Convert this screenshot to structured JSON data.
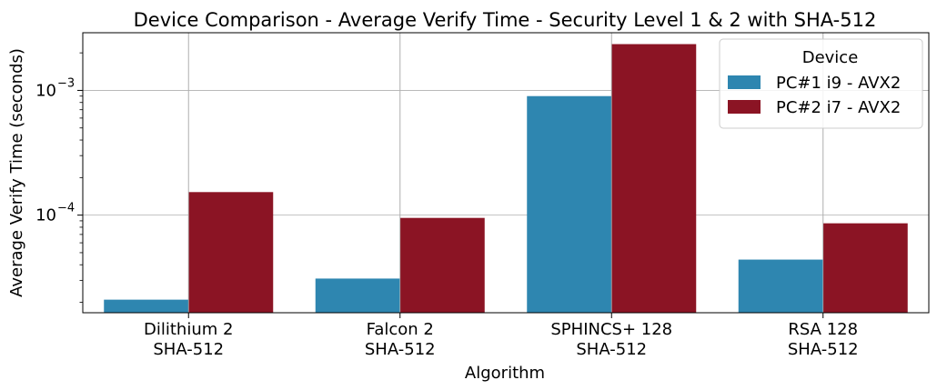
{
  "chart_data": {
    "type": "bar",
    "title": "Device Comparison - Average Verify Time - Security Level 1 & 2 with SHA-512",
    "xlabel": "Algorithm",
    "ylabel": "Average Verify Time (seconds)",
    "yscale": "log",
    "ylim": [
      1.65e-05,
      0.0029
    ],
    "grid": true,
    "categories": [
      [
        "Dilithium 2",
        "SHA-512"
      ],
      [
        "Falcon 2",
        "SHA-512"
      ],
      [
        "SPHINCS+ 128",
        "SHA-512"
      ],
      [
        "RSA 128",
        "SHA-512"
      ]
    ],
    "y_ticks": [
      {
        "value": 0.001,
        "base": "10",
        "exp": "−3"
      },
      {
        "value": 0.0001,
        "base": "10",
        "exp": "−4"
      }
    ],
    "legend": {
      "title": "Device",
      "position": "top-right"
    },
    "series": [
      {
        "name": "PC#1 i9 - AVX2",
        "color": "#2e86b0",
        "values": [
          2.1e-05,
          3.1e-05,
          0.0009,
          4.4e-05
        ]
      },
      {
        "name": "PC#2 i7 - AVX2",
        "color": "#8b1424",
        "values": [
          0.000153,
          9.5e-05,
          0.00235,
          8.6e-05
        ]
      }
    ]
  }
}
